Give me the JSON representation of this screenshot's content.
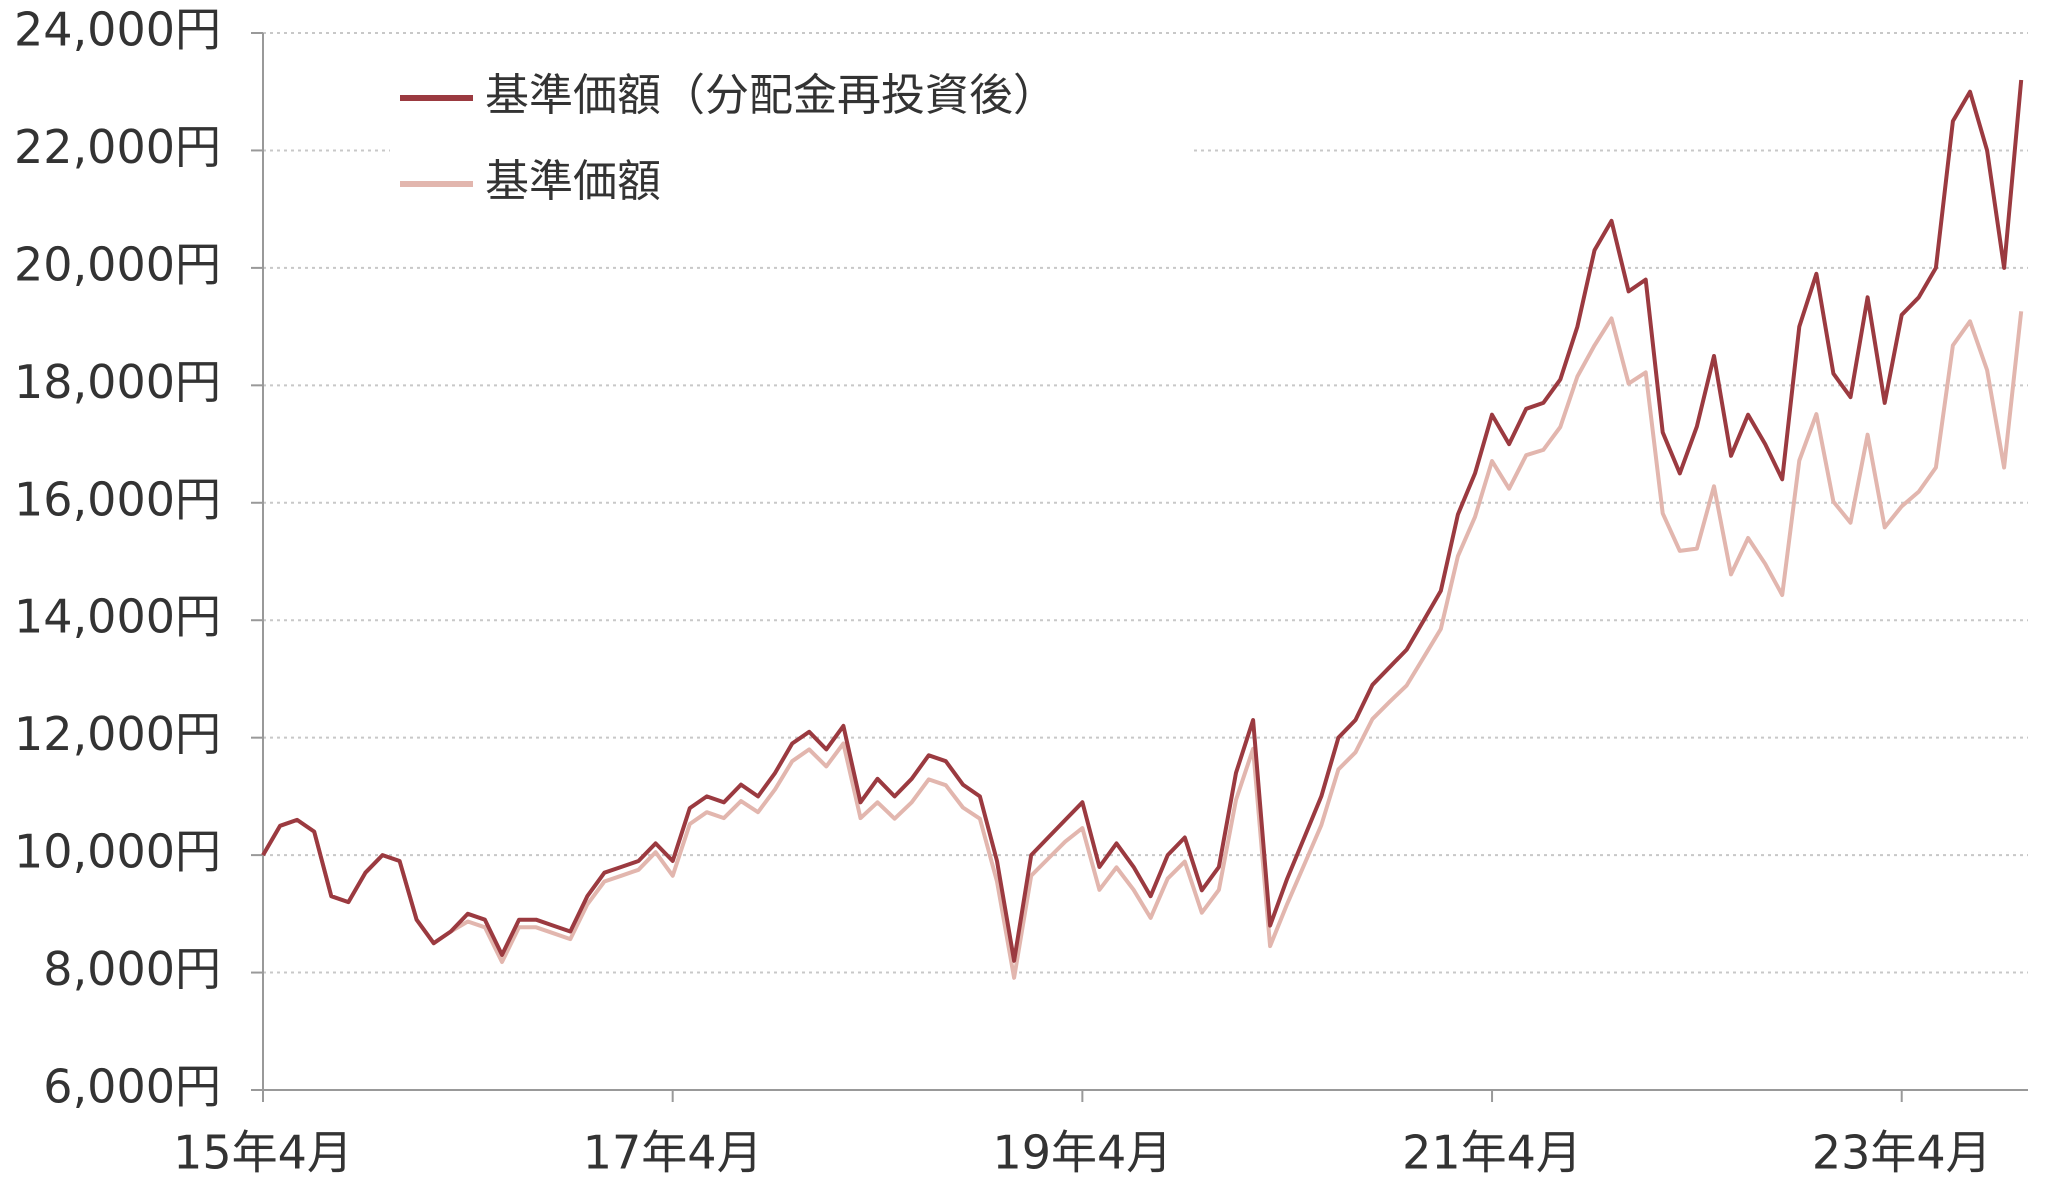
{
  "chart_data": {
    "type": "line",
    "categories": [
      "15年4月",
      null,
      null,
      null,
      null,
      null,
      null,
      null,
      null,
      null,
      null,
      null,
      null,
      null,
      null,
      null,
      null,
      null,
      null,
      null,
      null,
      null,
      null,
      null,
      "17年4月",
      null,
      null,
      null,
      null,
      null,
      null,
      null,
      null,
      null,
      null,
      null,
      null,
      null,
      null,
      null,
      null,
      null,
      null,
      null,
      null,
      null,
      null,
      null,
      "19年4月",
      null,
      null,
      null,
      null,
      null,
      null,
      null,
      null,
      null,
      null,
      null,
      null,
      null,
      null,
      null,
      null,
      null,
      null,
      null,
      null,
      null,
      null,
      null,
      "21年4月",
      null,
      null,
      null,
      null,
      null,
      null,
      null,
      null,
      null,
      null,
      null,
      null,
      null,
      null,
      null,
      null,
      null,
      null,
      null,
      null,
      null,
      null,
      null,
      "23年4月",
      null,
      null,
      null,
      null,
      null,
      null,
      null
    ],
    "series": [
      {
        "name": "基準価額（分配金再投資後）",
        "color": "#9b3a40",
        "values": [
          10000,
          10500,
          10600,
          10400,
          9300,
          9200,
          9700,
          10000,
          9900,
          8900,
          8500,
          8700,
          9000,
          8900,
          8300,
          8900,
          8900,
          8800,
          8700,
          9300,
          9700,
          9800,
          9900,
          10200,
          9900,
          10800,
          11000,
          10900,
          11200,
          11000,
          11400,
          11900,
          12100,
          11800,
          12200,
          10900,
          11300,
          11000,
          11300,
          11700,
          11600,
          11200,
          11000,
          9900,
          8200,
          10000,
          10300,
          10600,
          10900,
          9800,
          10200,
          9800,
          9300,
          10000,
          10300,
          9400,
          9800,
          11400,
          12300,
          8800,
          9600,
          10300,
          11000,
          12000,
          12300,
          12900,
          13200,
          13500,
          14000,
          14500,
          15800,
          16500,
          17500,
          17000,
          17600,
          17700,
          18100,
          19000,
          20300,
          20800,
          19600,
          19800,
          17200,
          16500,
          17300,
          18500,
          16800,
          17500,
          17000,
          16400,
          19000,
          19900,
          18200,
          17800,
          19500,
          17700,
          19200,
          19500,
          20000,
          22500,
          23000,
          22000,
          20000,
          23200
        ]
      },
      {
        "name": "基準価額",
        "color": "#e2b6ae",
        "values": [
          10000,
          10500,
          10600,
          10400,
          9300,
          9200,
          9700,
          10000,
          9900,
          8900,
          8500,
          8700,
          8870,
          8770,
          8180,
          8770,
          8770,
          8670,
          8570,
          9160,
          9550,
          9650,
          9750,
          10050,
          9650,
          10530,
          10730,
          10630,
          10920,
          10730,
          11120,
          11600,
          11800,
          11510,
          11900,
          10630,
          10900,
          10620,
          10900,
          11290,
          11190,
          10810,
          10620,
          9550,
          7910,
          9650,
          9940,
          10230,
          10460,
          9410,
          9790,
          9410,
          8930,
          9600,
          9890,
          9020,
          9410,
          10940,
          11810,
          8450,
          9170,
          9840,
          10510,
          11460,
          11750,
          12320,
          12610,
          12890,
          13370,
          13850,
          15090,
          15760,
          16710,
          16240,
          16810,
          16900,
          17290,
          18150,
          18680,
          19140,
          18030,
          18220,
          15820,
          15180,
          15220,
          16280,
          14780,
          15400,
          14960,
          14430,
          16720,
          17510,
          16020,
          15660,
          17160,
          15580,
          15940,
          16190,
          16600,
          18680,
          19090,
          18260,
          16600,
          19260
        ]
      }
    ],
    "ylim": [
      6000,
      24000
    ],
    "yticks": [
      {
        "value": 6000,
        "label": "6,000円"
      },
      {
        "value": 8000,
        "label": "8,000円"
      },
      {
        "value": 10000,
        "label": "10,000円"
      },
      {
        "value": 12000,
        "label": "12,000円"
      },
      {
        "value": 14000,
        "label": "14,000円"
      },
      {
        "value": 16000,
        "label": "16,000円"
      },
      {
        "value": 18000,
        "label": "18,000円"
      },
      {
        "value": 20000,
        "label": "20,000円"
      },
      {
        "value": 22000,
        "label": "22,000円"
      },
      {
        "value": 24000,
        "label": "24,000円"
      }
    ],
    "grid": true,
    "legend": "top-left"
  }
}
